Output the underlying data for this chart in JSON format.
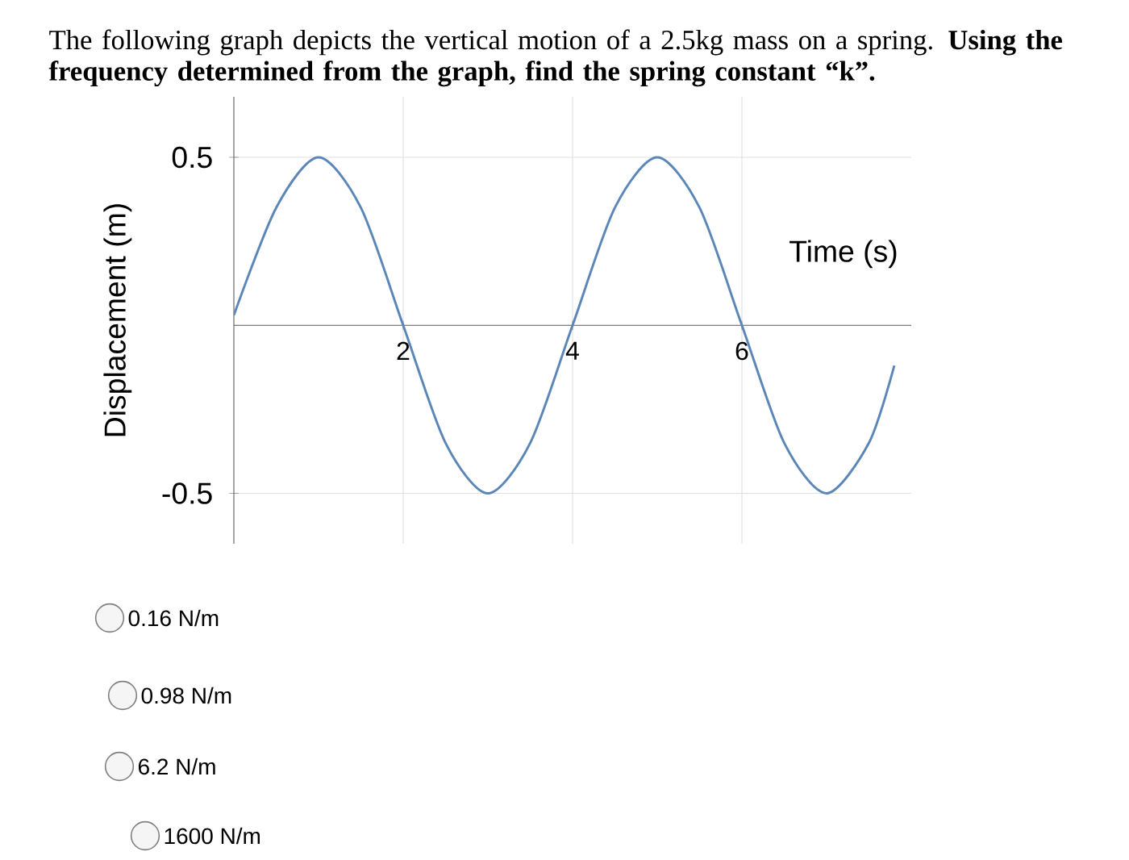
{
  "chart_data": {
    "type": "line",
    "title": "The following graph depicts the vertical motion of a 2.5kg mass on a spring. **Using the frequency determined from the graph, find the spring constant “k”.**",
    "xlabel": "Time (s)",
    "ylabel": "Displacement (m)",
    "x": [
      0,
      0.5,
      1,
      1.5,
      2,
      2.5,
      3,
      3.5,
      4,
      4.5,
      5,
      5.5,
      6,
      6.5,
      7,
      7.5,
      7.8
    ],
    "series": [
      {
        "color": "#5b87b8",
        "values": [
          0.03,
          0.35,
          0.5,
          0.35,
          0,
          -0.35,
          -0.5,
          -0.35,
          0,
          0.35,
          0.5,
          0.35,
          0,
          -0.35,
          -0.5,
          -0.35,
          -0.12
        ]
      }
    ],
    "xlim": [
      0,
      8
    ],
    "ylim": [
      -0.65,
      0.68
    ],
    "xticks": [
      2,
      4,
      6
    ],
    "yticks": [
      -0.5,
      0.5
    ],
    "grid": true,
    "marker": "none",
    "line_style": "solid",
    "annotations": [
      "0.16 N/m",
      "0.98 N/m",
      "6.2 N/m",
      "1600 N/m"
    ]
  }
}
